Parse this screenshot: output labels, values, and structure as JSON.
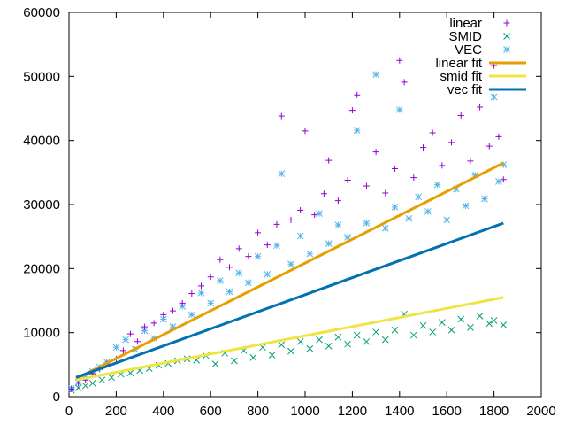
{
  "chart_data": {
    "type": "scatter",
    "title": "",
    "xlabel": "",
    "ylabel": "",
    "xlim": [
      0,
      2000
    ],
    "ylim": [
      0,
      60000
    ],
    "x_ticks": [
      0,
      200,
      400,
      600,
      800,
      1000,
      1200,
      1400,
      1600,
      1800,
      2000
    ],
    "y_ticks": [
      0,
      10000,
      20000,
      30000,
      40000,
      50000,
      60000
    ],
    "grid": false,
    "legend_position": "top-right",
    "series": [
      {
        "name": "linear",
        "marker": "plus",
        "color": "#9400d3",
        "points": [
          [
            10,
            1200
          ],
          [
            40,
            2100
          ],
          [
            70,
            2600
          ],
          [
            100,
            3600
          ],
          [
            130,
            4300
          ],
          [
            160,
            5100
          ],
          [
            200,
            5900
          ],
          [
            230,
            7200
          ],
          [
            260,
            9800
          ],
          [
            290,
            8600
          ],
          [
            320,
            10900
          ],
          [
            360,
            11500
          ],
          [
            400,
            12800
          ],
          [
            440,
            13400
          ],
          [
            480,
            14600
          ],
          [
            520,
            16100
          ],
          [
            560,
            17300
          ],
          [
            600,
            18700
          ],
          [
            640,
            21400
          ],
          [
            680,
            20200
          ],
          [
            720,
            23100
          ],
          [
            760,
            21900
          ],
          [
            800,
            25600
          ],
          [
            840,
            23700
          ],
          [
            880,
            26900
          ],
          [
            900,
            43800
          ],
          [
            940,
            27600
          ],
          [
            980,
            29100
          ],
          [
            1000,
            41500
          ],
          [
            1040,
            28400
          ],
          [
            1080,
            31700
          ],
          [
            1100,
            36900
          ],
          [
            1140,
            30600
          ],
          [
            1180,
            33800
          ],
          [
            1200,
            44700
          ],
          [
            1220,
            47100
          ],
          [
            1260,
            32900
          ],
          [
            1300,
            38200
          ],
          [
            1340,
            31800
          ],
          [
            1380,
            35600
          ],
          [
            1400,
            52500
          ],
          [
            1420,
            49100
          ],
          [
            1460,
            34200
          ],
          [
            1500,
            38900
          ],
          [
            1540,
            41200
          ],
          [
            1580,
            36100
          ],
          [
            1620,
            39700
          ],
          [
            1660,
            43900
          ],
          [
            1700,
            36800
          ],
          [
            1740,
            45200
          ],
          [
            1780,
            39100
          ],
          [
            1800,
            51700
          ],
          [
            1820,
            40600
          ],
          [
            1840,
            33900
          ]
        ]
      },
      {
        "name": "SMID",
        "marker": "cross",
        "color": "#009e73",
        "points": [
          [
            10,
            1000
          ],
          [
            40,
            1400
          ],
          [
            70,
            1700
          ],
          [
            100,
            2100
          ],
          [
            140,
            2600
          ],
          [
            180,
            3000
          ],
          [
            220,
            3500
          ],
          [
            260,
            3700
          ],
          [
            300,
            4100
          ],
          [
            340,
            4400
          ],
          [
            380,
            4900
          ],
          [
            420,
            5200
          ],
          [
            460,
            5600
          ],
          [
            500,
            5900
          ],
          [
            540,
            5700
          ],
          [
            580,
            6400
          ],
          [
            620,
            5100
          ],
          [
            660,
            6800
          ],
          [
            700,
            5600
          ],
          [
            740,
            7200
          ],
          [
            780,
            6100
          ],
          [
            820,
            7700
          ],
          [
            860,
            6500
          ],
          [
            900,
            8100
          ],
          [
            940,
            7100
          ],
          [
            980,
            8600
          ],
          [
            1020,
            7500
          ],
          [
            1060,
            8900
          ],
          [
            1100,
            7900
          ],
          [
            1140,
            9300
          ],
          [
            1180,
            8200
          ],
          [
            1220,
            9600
          ],
          [
            1260,
            8600
          ],
          [
            1300,
            10100
          ],
          [
            1340,
            8900
          ],
          [
            1380,
            10400
          ],
          [
            1420,
            12900
          ],
          [
            1460,
            9600
          ],
          [
            1500,
            11100
          ],
          [
            1540,
            10100
          ],
          [
            1580,
            11600
          ],
          [
            1620,
            10400
          ],
          [
            1660,
            12100
          ],
          [
            1700,
            10800
          ],
          [
            1740,
            12600
          ],
          [
            1780,
            11400
          ],
          [
            1800,
            11900
          ],
          [
            1840,
            11200
          ]
        ]
      },
      {
        "name": "VEC",
        "marker": "star",
        "color": "#56b4e9",
        "points": [
          [
            10,
            1300
          ],
          [
            40,
            2200
          ],
          [
            70,
            3100
          ],
          [
            100,
            3900
          ],
          [
            130,
            4600
          ],
          [
            160,
            5400
          ],
          [
            200,
            7700
          ],
          [
            240,
            8900
          ],
          [
            280,
            7400
          ],
          [
            320,
            10300
          ],
          [
            360,
            9100
          ],
          [
            400,
            12100
          ],
          [
            440,
            10900
          ],
          [
            480,
            14100
          ],
          [
            520,
            12800
          ],
          [
            560,
            16200
          ],
          [
            600,
            14600
          ],
          [
            640,
            18100
          ],
          [
            680,
            16400
          ],
          [
            720,
            19300
          ],
          [
            760,
            17800
          ],
          [
            800,
            21900
          ],
          [
            840,
            19100
          ],
          [
            880,
            23600
          ],
          [
            900,
            34800
          ],
          [
            940,
            20700
          ],
          [
            980,
            25100
          ],
          [
            1020,
            22300
          ],
          [
            1060,
            28600
          ],
          [
            1100,
            23900
          ],
          [
            1140,
            26800
          ],
          [
            1180,
            24900
          ],
          [
            1220,
            41600
          ],
          [
            1260,
            27100
          ],
          [
            1300,
            50300
          ],
          [
            1340,
            26300
          ],
          [
            1380,
            29600
          ],
          [
            1400,
            44800
          ],
          [
            1440,
            27800
          ],
          [
            1480,
            31200
          ],
          [
            1520,
            28900
          ],
          [
            1560,
            33100
          ],
          [
            1600,
            27600
          ],
          [
            1640,
            32400
          ],
          [
            1680,
            29800
          ],
          [
            1720,
            34600
          ],
          [
            1760,
            30900
          ],
          [
            1800,
            46800
          ],
          [
            1820,
            33600
          ],
          [
            1840,
            36200
          ]
        ]
      },
      {
        "name": "linear fit",
        "type": "line",
        "color": "#e69f00",
        "points": [
          [
            30,
            2800
          ],
          [
            1840,
            36500
          ]
        ]
      },
      {
        "name": "smid fit",
        "type": "line",
        "color": "#f0e442",
        "points": [
          [
            30,
            2600
          ],
          [
            1840,
            15500
          ]
        ]
      },
      {
        "name": "vec fit",
        "type": "line",
        "color": "#0072b2",
        "points": [
          [
            30,
            3000
          ],
          [
            1840,
            27100
          ]
        ]
      }
    ]
  }
}
